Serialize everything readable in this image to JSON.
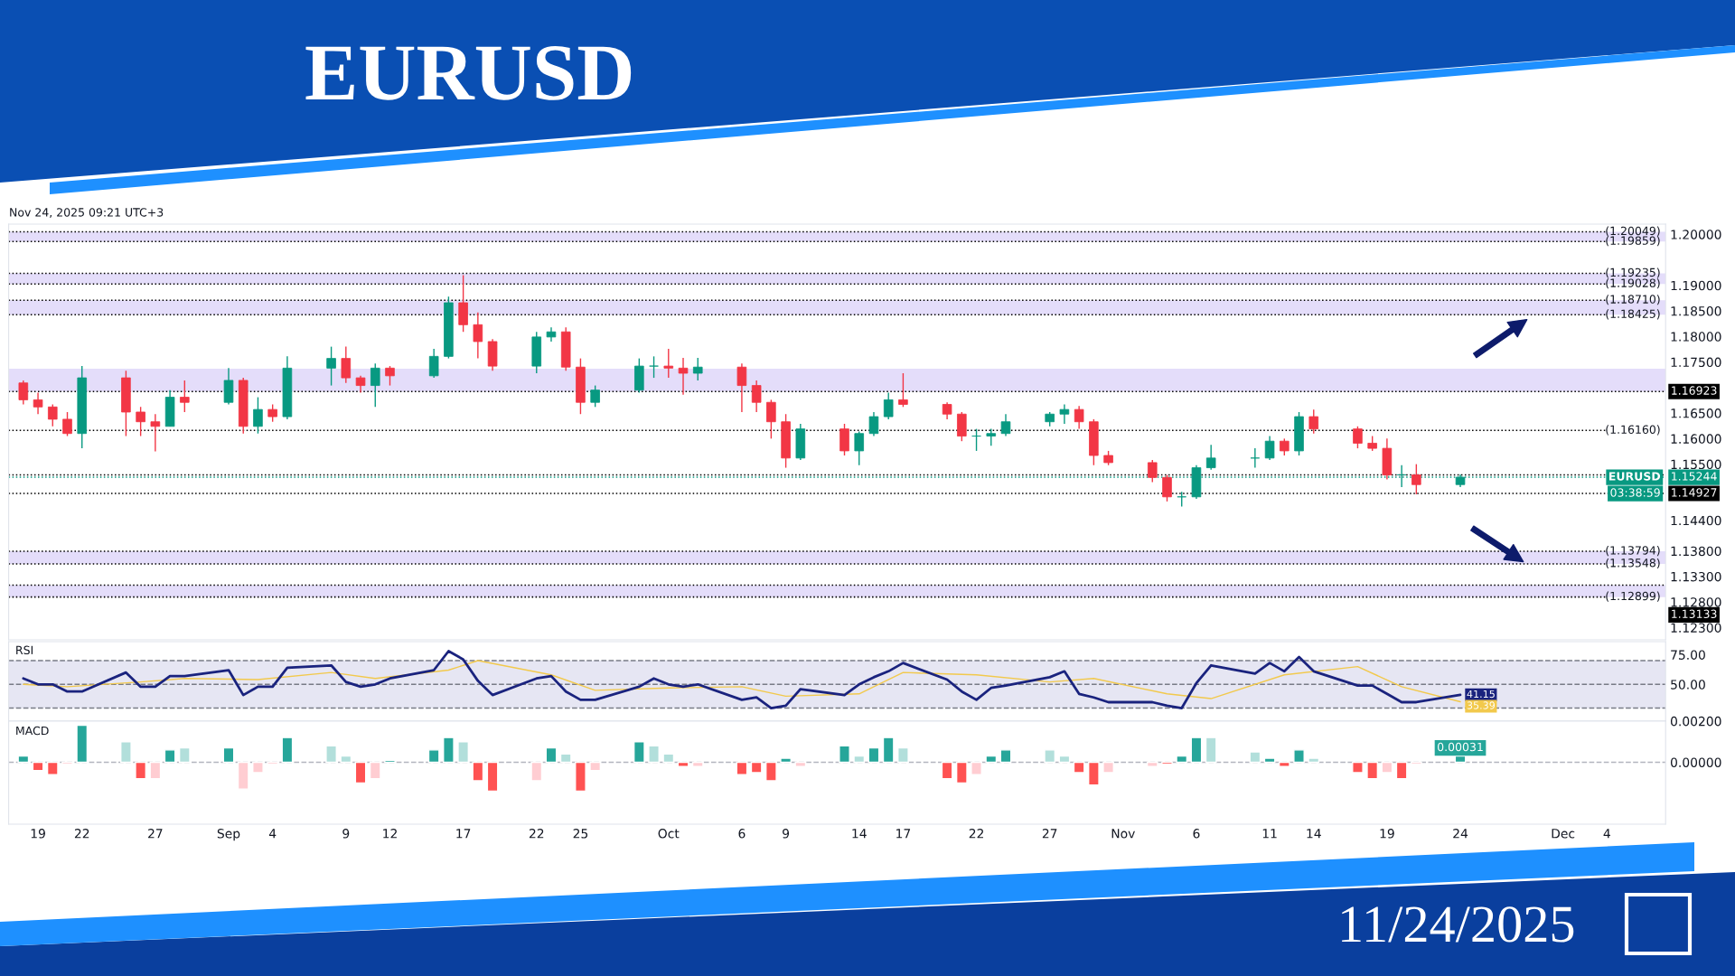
{
  "chart_data": [
    {
      "type": "candlestick",
      "title": "EURUSD",
      "tick_labels": "y",
      "annotations": [
        "Nov 24, 2025 09:21 UTC+3",
        "11/24/2025",
        "EURUSD",
        "03:38:59"
      ],
      "x": [
        "2025-08-18",
        "2025-08-19",
        "2025-08-20",
        "2025-08-21",
        "2025-08-22",
        "2025-08-25",
        "2025-08-26",
        "2025-08-27",
        "2025-08-28",
        "2025-08-29",
        "2025-09-01",
        "2025-09-02",
        "2025-09-03",
        "2025-09-04",
        "2025-09-05",
        "2025-09-08",
        "2025-09-09",
        "2025-09-10",
        "2025-09-11",
        "2025-09-12",
        "2025-09-15",
        "2025-09-16",
        "2025-09-17",
        "2025-09-18",
        "2025-09-19",
        "2025-09-22",
        "2025-09-23",
        "2025-09-24",
        "2025-09-25",
        "2025-09-26",
        "2025-09-29",
        "2025-09-30",
        "2025-10-01",
        "2025-10-02",
        "2025-10-03",
        "2025-10-06",
        "2025-10-07",
        "2025-10-08",
        "2025-10-09",
        "2025-10-10",
        "2025-10-13",
        "2025-10-14",
        "2025-10-15",
        "2025-10-16",
        "2025-10-17",
        "2025-10-20",
        "2025-10-21",
        "2025-10-22",
        "2025-10-23",
        "2025-10-24",
        "2025-10-27",
        "2025-10-28",
        "2025-10-29",
        "2025-10-30",
        "2025-10-31",
        "2025-11-03",
        "2025-11-04",
        "2025-11-05",
        "2025-11-06",
        "2025-11-07",
        "2025-11-10",
        "2025-11-11",
        "2025-11-12",
        "2025-11-13",
        "2025-11-14",
        "2025-11-17",
        "2025-11-18",
        "2025-11-19",
        "2025-11-20",
        "2025-11-21",
        "2025-11-24"
      ],
      "ohlc": [
        [
          1.1709,
          1.1714,
          1.1667,
          1.1676
        ],
        [
          1.1676,
          1.169,
          1.1648,
          1.1662
        ],
        [
          1.1662,
          1.1667,
          1.1624,
          1.1638
        ],
        [
          1.1638,
          1.1652,
          1.1605,
          1.161
        ],
        [
          1.161,
          1.1742,
          1.1581,
          1.1719
        ],
        [
          1.1719,
          1.1733,
          1.1605,
          1.1652
        ],
        [
          1.1652,
          1.1662,
          1.1605,
          1.1633
        ],
        [
          1.1633,
          1.1648,
          1.1575,
          1.1624
        ],
        [
          1.1624,
          1.1695,
          1.1624,
          1.1681
        ],
        [
          1.1681,
          1.1714,
          1.1652,
          1.1671
        ],
        [
          1.1671,
          1.1738,
          1.1667,
          1.1714
        ],
        [
          1.1714,
          1.1719,
          1.161,
          1.1624
        ],
        [
          1.1624,
          1.1681,
          1.161,
          1.1657
        ],
        [
          1.1657,
          1.1667,
          1.1633,
          1.1643
        ],
        [
          1.1643,
          1.1761,
          1.1638,
          1.1738
        ],
        [
          1.1738,
          1.178,
          1.1704,
          1.1757
        ],
        [
          1.1757,
          1.178,
          1.1709,
          1.1719
        ],
        [
          1.1719,
          1.1723,
          1.169,
          1.1704
        ],
        [
          1.1704,
          1.1747,
          1.1662,
          1.1738
        ],
        [
          1.1738,
          1.1742,
          1.1704,
          1.1723
        ],
        [
          1.1723,
          1.1776,
          1.1719,
          1.1761
        ],
        [
          1.1761,
          1.1878,
          1.1757,
          1.1866
        ],
        [
          1.1866,
          1.192,
          1.1809,
          1.1823
        ],
        [
          1.1823,
          1.1847,
          1.1757,
          1.179
        ],
        [
          1.179,
          1.1795,
          1.1733,
          1.1742
        ],
        [
          1.1742,
          1.1809,
          1.1728,
          1.1799
        ],
        [
          1.1799,
          1.1818,
          1.179,
          1.1809
        ],
        [
          1.1809,
          1.1818,
          1.1733,
          1.174
        ],
        [
          1.174,
          1.1757,
          1.1648,
          1.1671
        ],
        [
          1.1671,
          1.1704,
          1.1662,
          1.1695
        ],
        [
          1.1695,
          1.1757,
          1.169,
          1.1742
        ],
        [
          1.1742,
          1.1761,
          1.1719,
          1.1742
        ],
        [
          1.1742,
          1.1776,
          1.1719,
          1.1738
        ],
        [
          1.1738,
          1.1758,
          1.1686,
          1.1728
        ],
        [
          1.1728,
          1.1758,
          1.1714,
          1.174
        ],
        [
          1.174,
          1.1747,
          1.1652,
          1.1704
        ],
        [
          1.1704,
          1.1714,
          1.1652,
          1.1671
        ],
        [
          1.1671,
          1.1676,
          1.16,
          1.1633
        ],
        [
          1.1633,
          1.1648,
          1.1543,
          1.1562
        ],
        [
          1.1562,
          1.1629,
          1.1558,
          1.1619
        ],
        [
          1.1619,
          1.1629,
          1.1567,
          1.1576
        ],
        [
          1.1576,
          1.1614,
          1.1548,
          1.161
        ],
        [
          1.161,
          1.1652,
          1.1605,
          1.1643
        ],
        [
          1.1643,
          1.169,
          1.1638,
          1.1676
        ],
        [
          1.1676,
          1.1728,
          1.1662,
          1.1667
        ],
        [
          1.1667,
          1.1671,
          1.1638,
          1.1648
        ],
        [
          1.1648,
          1.1652,
          1.1595,
          1.1605
        ],
        [
          1.1605,
          1.1619,
          1.1576,
          1.1605
        ],
        [
          1.1605,
          1.1619,
          1.1586,
          1.161
        ],
        [
          1.161,
          1.1648,
          1.1605,
          1.1633
        ],
        [
          1.1633,
          1.1652,
          1.1624,
          1.1648
        ],
        [
          1.1648,
          1.1667,
          1.1629,
          1.1657
        ],
        [
          1.1657,
          1.1664,
          1.1619,
          1.1633
        ],
        [
          1.1633,
          1.1638,
          1.1548,
          1.1567
        ],
        [
          1.1567,
          1.1576,
          1.1548,
          1.1553
        ],
        [
          1.1553,
          1.1558,
          1.1515,
          1.1524
        ],
        [
          1.1524,
          1.1529,
          1.1477,
          1.1486
        ],
        [
          1.1486,
          1.1496,
          1.1467,
          1.1486
        ],
        [
          1.1486,
          1.1548,
          1.1482,
          1.1543
        ],
        [
          1.1543,
          1.1588,
          1.1539,
          1.1562
        ],
        [
          1.1562,
          1.1581,
          1.1543,
          1.1562
        ],
        [
          1.1562,
          1.1605,
          1.1558,
          1.1595
        ],
        [
          1.1595,
          1.16,
          1.1567,
          1.1576
        ],
        [
          1.1576,
          1.1652,
          1.1567,
          1.1643
        ],
        [
          1.1643,
          1.1657,
          1.161,
          1.1619
        ],
        [
          1.1619,
          1.1624,
          1.1581,
          1.1591
        ],
        [
          1.1591,
          1.1605,
          1.1576,
          1.1581
        ],
        [
          1.1581,
          1.16,
          1.152,
          1.1529
        ],
        [
          1.1529,
          1.1548,
          1.1505,
          1.1529
        ],
        [
          1.1529,
          1.155,
          1.1491,
          1.151
        ],
        [
          1.151,
          1.153,
          1.1505,
          1.15244
        ]
      ],
      "colors": [
        "#f23645",
        "#f23645",
        "#f23645",
        "#f23645",
        "#089981",
        "#f23645",
        "#f23645",
        "#f23645",
        "#089981",
        "#f23645",
        "#089981",
        "#f23645",
        "#089981",
        "#f23645",
        "#089981",
        "#089981",
        "#f23645",
        "#f23645",
        "#089981",
        "#f23645",
        "#089981",
        "#089981",
        "#f23645",
        "#f23645",
        "#f23645",
        "#089981",
        "#089981",
        "#f23645",
        "#f23645",
        "#089981",
        "#089981",
        "#089981",
        "#f23645",
        "#f23645",
        "#089981",
        "#f23645",
        "#f23645",
        "#f23645",
        "#f23645",
        "#089981",
        "#f23645",
        "#089981",
        "#089981",
        "#089981",
        "#f23645",
        "#f23645",
        "#f23645",
        "#089981",
        "#089981",
        "#089981",
        "#089981",
        "#089981",
        "#f23645",
        "#f23645",
        "#f23645",
        "#f23645",
        "#f23645",
        "#089981",
        "#089981",
        "#089981",
        "#089981",
        "#089981",
        "#f23645",
        "#089981",
        "#f23645",
        "#f23645",
        "#f23645",
        "#f23645",
        "#089981",
        "#f23645",
        "#089981"
      ],
      "xlim": [
        "2025-08-17",
        "2025-12-08"
      ],
      "ylim": [
        1.1206,
        1.202
      ],
      "yticks": [
        {
          "value": 1.2,
          "label": "1.20000"
        },
        {
          "value": 1.19,
          "label": "1.19000"
        },
        {
          "value": 1.185,
          "label": "1.18500"
        },
        {
          "value": 1.18,
          "label": "1.18000"
        },
        {
          "value": 1.175,
          "label": "1.17500"
        },
        {
          "value": 1.165,
          "label": "1.16500"
        },
        {
          "value": 1.16,
          "label": "1.16000"
        },
        {
          "value": 1.155,
          "label": "1.15500"
        },
        {
          "value": 1.144,
          "label": "1.14400"
        },
        {
          "value": 1.138,
          "label": "1.13800"
        },
        {
          "value": 1.133,
          "label": "1.13300"
        },
        {
          "value": 1.128,
          "label": "1.12800"
        },
        {
          "value": 1.123,
          "label": "1.12300"
        }
      ],
      "bands": [
        {
          "axis": "y",
          "from": 1.19859,
          "to": 1.20049,
          "color": "#e4ddfa"
        },
        {
          "axis": "y",
          "from": 1.19028,
          "to": 1.19235,
          "color": "#e4ddfa"
        },
        {
          "axis": "y",
          "from": 1.18425,
          "to": 1.1871,
          "color": "#e4ddfa"
        },
        {
          "axis": "y",
          "from": 1.16923,
          "to": 1.1737,
          "color": "#e4ddfa"
        },
        {
          "axis": "y",
          "from": 1.13548,
          "to": 1.13794,
          "color": "#e4ddfa"
        },
        {
          "axis": "y",
          "from": 1.12899,
          "to": 1.13133,
          "color": "#e4ddfa"
        }
      ],
      "ref_lines": [
        {
          "axis": "y",
          "value": 1.20049,
          "label": "(1.20049)",
          "line_style": "dotted"
        },
        {
          "axis": "y",
          "value": 1.19859,
          "label": "(1.19859)",
          "line_style": "dotted"
        },
        {
          "axis": "y",
          "value": 1.19235,
          "label": "(1.19235)",
          "line_style": "dotted"
        },
        {
          "axis": "y",
          "value": 1.19028,
          "label": "(1.19028)",
          "line_style": "dotted"
        },
        {
          "axis": "y",
          "value": 1.1871,
          "label": "(1.18710)",
          "line_style": "dotted"
        },
        {
          "axis": "y",
          "value": 1.18425,
          "label": "(1.18425)",
          "line_style": "dotted"
        },
        {
          "axis": "y",
          "value": 1.16923,
          "label": "1.16923",
          "line_style": "dotted",
          "color": "#000000"
        },
        {
          "axis": "y",
          "value": 1.1616,
          "label": "(1.16160)",
          "line_style": "dotted"
        },
        {
          "axis": "y",
          "value": 1.1529,
          "label": null,
          "line_style": "dotted"
        },
        {
          "axis": "y",
          "value": 1.15244,
          "label": "1.15244",
          "line_style": "dotted",
          "color": "#089981"
        },
        {
          "axis": "y",
          "value": 1.14927,
          "label": "1.14927",
          "line_style": "dotted",
          "color": "#000000"
        },
        {
          "axis": "y",
          "value": 1.13794,
          "label": "(1.13794)",
          "line_style": "dotted"
        },
        {
          "axis": "y",
          "value": 1.13548,
          "label": "(1.13548)",
          "line_style": "dotted"
        },
        {
          "axis": "y",
          "value": 1.13133,
          "label": "1.13133",
          "line_style": "dotted",
          "color": "#000000"
        },
        {
          "axis": "y",
          "value": 1.12899,
          "label": "(1.12899)",
          "line_style": "dotted"
        }
      ]
    },
    {
      "type": "line",
      "title": "RSI",
      "tick_labels": "y",
      "x": [
        "2025-08-18",
        "2025-08-19",
        "2025-08-20",
        "2025-08-21",
        "2025-08-22",
        "2025-08-25",
        "2025-08-26",
        "2025-08-27",
        "2025-08-28",
        "2025-08-29",
        "2025-09-01",
        "2025-09-02",
        "2025-09-03",
        "2025-09-04",
        "2025-09-05",
        "2025-09-08",
        "2025-09-09",
        "2025-09-10",
        "2025-09-11",
        "2025-09-12",
        "2025-09-15",
        "2025-09-16",
        "2025-09-17",
        "2025-09-18",
        "2025-09-19",
        "2025-09-22",
        "2025-09-23",
        "2025-09-24",
        "2025-09-25",
        "2025-09-26",
        "2025-09-29",
        "2025-09-30",
        "2025-10-01",
        "2025-10-02",
        "2025-10-03",
        "2025-10-06",
        "2025-10-07",
        "2025-10-08",
        "2025-10-09",
        "2025-10-10",
        "2025-10-13",
        "2025-10-14",
        "2025-10-15",
        "2025-10-16",
        "2025-10-17",
        "2025-10-20",
        "2025-10-21",
        "2025-10-22",
        "2025-10-23",
        "2025-10-24",
        "2025-10-27",
        "2025-10-28",
        "2025-10-29",
        "2025-10-30",
        "2025-10-31",
        "2025-11-03",
        "2025-11-04",
        "2025-11-05",
        "2025-11-06",
        "2025-11-07",
        "2025-11-10",
        "2025-11-11",
        "2025-11-12",
        "2025-11-13",
        "2025-11-14",
        "2025-11-17",
        "2025-11-18",
        "2025-11-19",
        "2025-11-20",
        "2025-11-21",
        "2025-11-24"
      ],
      "xlim": [
        "2025-08-17",
        "2025-12-08"
      ],
      "ylim": [
        19,
        86
      ],
      "yticks": [
        {
          "value": 75,
          "label": "75.00"
        },
        {
          "value": 50,
          "label": "50.00"
        }
      ],
      "bands": [
        {
          "axis": "y",
          "from": 30,
          "to": 70,
          "color": "#e6e6f3"
        }
      ],
      "ref_lines": [
        {
          "axis": "y",
          "value": 70,
          "line_style": "dashed",
          "color": "#787b86"
        },
        {
          "axis": "y",
          "value": 50,
          "line_style": "dashed",
          "color": "#787b86"
        },
        {
          "axis": "y",
          "value": 30,
          "line_style": "dashed",
          "color": "#787b86"
        }
      ],
      "series": [
        {
          "color": "#1a237e",
          "values": [
            55,
            50,
            50,
            44,
            44,
            60,
            48,
            48,
            57,
            57,
            62,
            41,
            48,
            48,
            64,
            66,
            52,
            48,
            50,
            55,
            62,
            78,
            71,
            53,
            41,
            55,
            57,
            44,
            37,
            37,
            48,
            55,
            50,
            48,
            50,
            37,
            39,
            30,
            32,
            46,
            41,
            50,
            56,
            61,
            68,
            54,
            44,
            37,
            47,
            49,
            56,
            61,
            42,
            39,
            35,
            35,
            32,
            30,
            51,
            66,
            59,
            68,
            61,
            73,
            61,
            49,
            49,
            42,
            35,
            35,
            41.15
          ],
          "value_labels": [
            null,
            null,
            null,
            null,
            null,
            null,
            null,
            null,
            null,
            null,
            null,
            null,
            null,
            null,
            null,
            null,
            null,
            null,
            null,
            null,
            null,
            null,
            null,
            null,
            null,
            null,
            null,
            null,
            null,
            null,
            null,
            null,
            null,
            null,
            null,
            null,
            null,
            null,
            null,
            null,
            null,
            null,
            null,
            null,
            null,
            null,
            null,
            null,
            null,
            null,
            null,
            null,
            null,
            null,
            null,
            null,
            null,
            null,
            null,
            null,
            null,
            null,
            null,
            null,
            null,
            null,
            null,
            null,
            null,
            null,
            "41.15"
          ]
        },
        {
          "color": "#f2c94c",
          "x": [
            "2025-08-18",
            "2025-08-21",
            "2025-08-26",
            "2025-08-29",
            "2025-09-03",
            "2025-09-08",
            "2025-09-11",
            "2025-09-16",
            "2025-09-18",
            "2025-09-23",
            "2025-09-26",
            "2025-10-01",
            "2025-10-06",
            "2025-10-09",
            "2025-10-14",
            "2025-10-17",
            "2025-10-22",
            "2025-10-27",
            "2025-10-30",
            "2025-11-04",
            "2025-11-07",
            "2025-11-12",
            "2025-11-17",
            "2025-11-20",
            "2025-11-24"
          ],
          "values": [
            50,
            48,
            52,
            55,
            54,
            60,
            55,
            62,
            70,
            58,
            45,
            47,
            48,
            40,
            42,
            60,
            58,
            52,
            55,
            42,
            38,
            58,
            65,
            48,
            35.39
          ],
          "value_labels": [
            null,
            null,
            null,
            null,
            null,
            null,
            null,
            null,
            null,
            null,
            null,
            null,
            null,
            null,
            null,
            null,
            null,
            null,
            null,
            null,
            null,
            null,
            null,
            null,
            "35.39"
          ]
        }
      ]
    },
    {
      "type": "bar",
      "title": "MACD",
      "x": [
        "2025-08-18",
        "2025-08-19",
        "2025-08-20",
        "2025-08-21",
        "2025-08-22",
        "2025-08-25",
        "2025-08-26",
        "2025-08-27",
        "2025-08-28",
        "2025-08-29",
        "2025-09-01",
        "2025-09-02",
        "2025-09-03",
        "2025-09-04",
        "2025-09-05",
        "2025-09-08",
        "2025-09-09",
        "2025-09-10",
        "2025-09-11",
        "2025-09-12",
        "2025-09-15",
        "2025-09-16",
        "2025-09-17",
        "2025-09-18",
        "2025-09-19",
        "2025-09-22",
        "2025-09-23",
        "2025-09-24",
        "2025-09-25",
        "2025-09-26",
        "2025-09-29",
        "2025-09-30",
        "2025-10-01",
        "2025-10-02",
        "2025-10-03",
        "2025-10-06",
        "2025-10-07",
        "2025-10-08",
        "2025-10-09",
        "2025-10-10",
        "2025-10-13",
        "2025-10-14",
        "2025-10-15",
        "2025-10-16",
        "2025-10-17",
        "2025-10-20",
        "2025-10-21",
        "2025-10-22",
        "2025-10-23",
        "2025-10-24",
        "2025-10-27",
        "2025-10-28",
        "2025-10-29",
        "2025-10-30",
        "2025-10-31",
        "2025-11-03",
        "2025-11-04",
        "2025-11-05",
        "2025-11-06",
        "2025-11-07",
        "2025-11-10",
        "2025-11-11",
        "2025-11-12",
        "2025-11-13",
        "2025-11-14",
        "2025-11-17",
        "2025-11-18",
        "2025-11-19",
        "2025-11-20",
        "2025-11-21",
        "2025-11-24"
      ],
      "values": [
        0.0003,
        -0.0004,
        -0.0006,
        -0.0001,
        0.0018,
        0.001,
        -0.0008,
        -0.0008,
        0.0006,
        0.0007,
        0.0007,
        -0.0013,
        -0.0005,
        -0.0001,
        0.0012,
        0.0008,
        0.0003,
        -0.001,
        -0.0008,
        0.0001,
        0.0006,
        0.0012,
        0.001,
        -0.0009,
        -0.0014,
        -0.0009,
        0.0007,
        0.0004,
        -0.0014,
        -0.0004,
        0.001,
        0.0008,
        0.0004,
        -0.0002,
        -0.0002,
        -0.0006,
        -0.0005,
        -0.0009,
        0.0002,
        -0.0002,
        0.0008,
        0.0003,
        0.0007,
        0.0012,
        0.0007,
        -0.0008,
        -0.001,
        -0.0006,
        0.0003,
        0.0006,
        0.0006,
        0.0003,
        -0.0005,
        -0.0011,
        -0.0005,
        -0.0002,
        -0.0001,
        0.0003,
        0.0012,
        0.0012,
        0.0005,
        0.0002,
        -0.0002,
        0.0006,
        0.0002,
        -0.0005,
        -0.0008,
        -0.0005,
        -0.0008,
        -0.0001,
        0.00031
      ],
      "colors": [
        "#26a69a",
        "#ff5252",
        "#ff5252",
        "#ffcdd2",
        "#26a69a",
        "#b2dfdb",
        "#ff5252",
        "#ffcdd2",
        "#26a69a",
        "#b2dfdb",
        "#26a69a",
        "#ffcdd2",
        "#ffcdd2",
        "#ffcdd2",
        "#26a69a",
        "#b2dfdb",
        "#b2dfdb",
        "#ff5252",
        "#ffcdd2",
        "#26a69a",
        "#26a69a",
        "#26a69a",
        "#b2dfdb",
        "#ff5252",
        "#ff5252",
        "#ffcdd2",
        "#26a69a",
        "#b2dfdb",
        "#ff5252",
        "#ffcdd2",
        "#26a69a",
        "#b2dfdb",
        "#b2dfdb",
        "#ff5252",
        "#ffcdd2",
        "#ff5252",
        "#ff5252",
        "#ff5252",
        "#26a69a",
        "#ffcdd2",
        "#26a69a",
        "#b2dfdb",
        "#26a69a",
        "#26a69a",
        "#b2dfdb",
        "#ff5252",
        "#ff5252",
        "#ffcdd2",
        "#26a69a",
        "#26a69a",
        "#b2dfdb",
        "#b2dfdb",
        "#ff5252",
        "#ff5252",
        "#ffcdd2",
        "#ffcdd2",
        "#ff5252",
        "#26a69a",
        "#26a69a",
        "#b2dfdb",
        "#b2dfdb",
        "#26a69a",
        "#ff5252",
        "#26a69a",
        "#b2dfdb",
        "#ff5252",
        "#ff5252",
        "#ffcdd2",
        "#ff5252",
        "#ffcdd2",
        "#26a69a"
      ],
      "value_labels": [
        null,
        null,
        null,
        null,
        null,
        null,
        null,
        null,
        null,
        null,
        null,
        null,
        null,
        null,
        null,
        null,
        null,
        null,
        null,
        null,
        null,
        null,
        null,
        null,
        null,
        null,
        null,
        null,
        null,
        null,
        null,
        null,
        null,
        null,
        null,
        null,
        null,
        null,
        null,
        null,
        null,
        null,
        null,
        null,
        null,
        null,
        null,
        null,
        null,
        null,
        null,
        null,
        null,
        null,
        null,
        null,
        null,
        null,
        null,
        null,
        null,
        null,
        null,
        null,
        null,
        null,
        null,
        null,
        null,
        null,
        "0.00031"
      ],
      "xlim": [
        "2025-08-17",
        "2025-12-08"
      ],
      "xticks": [
        {
          "value": "2025-08-19",
          "label": "19"
        },
        {
          "value": "2025-08-22",
          "label": "22"
        },
        {
          "value": "2025-08-27",
          "label": "27"
        },
        {
          "value": "2025-09-01",
          "label": "Sep"
        },
        {
          "value": "2025-09-04",
          "label": "4"
        },
        {
          "value": "2025-09-09",
          "label": "9"
        },
        {
          "value": "2025-09-12",
          "label": "12"
        },
        {
          "value": "2025-09-17",
          "label": "17"
        },
        {
          "value": "2025-09-22",
          "label": "22"
        },
        {
          "value": "2025-09-25",
          "label": "25"
        },
        {
          "value": "2025-10-01",
          "label": "Oct"
        },
        {
          "value": "2025-10-06",
          "label": "6"
        },
        {
          "value": "2025-10-09",
          "label": "9"
        },
        {
          "value": "2025-10-14",
          "label": "14"
        },
        {
          "value": "2025-10-17",
          "label": "17"
        },
        {
          "value": "2025-10-22",
          "label": "22"
        },
        {
          "value": "2025-10-27",
          "label": "27"
        },
        {
          "value": "2025-11-01",
          "label": "Nov"
        },
        {
          "value": "2025-11-06",
          "label": "6"
        },
        {
          "value": "2025-11-11",
          "label": "11"
        },
        {
          "value": "2025-11-14",
          "label": "14"
        },
        {
          "value": "2025-11-19",
          "label": "19"
        },
        {
          "value": "2025-11-24",
          "label": "24"
        },
        {
          "value": "2025-12-01",
          "label": "Dec"
        },
        {
          "value": "2025-12-04",
          "label": "4"
        }
      ],
      "ylim": [
        -0.003,
        0.002
      ],
      "yticks": [
        {
          "value": 0.002,
          "label": "0.00200"
        },
        {
          "value": 0,
          "label": "0.00000"
        }
      ],
      "ref_lines": [
        {
          "axis": "y",
          "value": 0,
          "line_style": "dashed",
          "color": "#b2b5be"
        }
      ]
    }
  ]
}
